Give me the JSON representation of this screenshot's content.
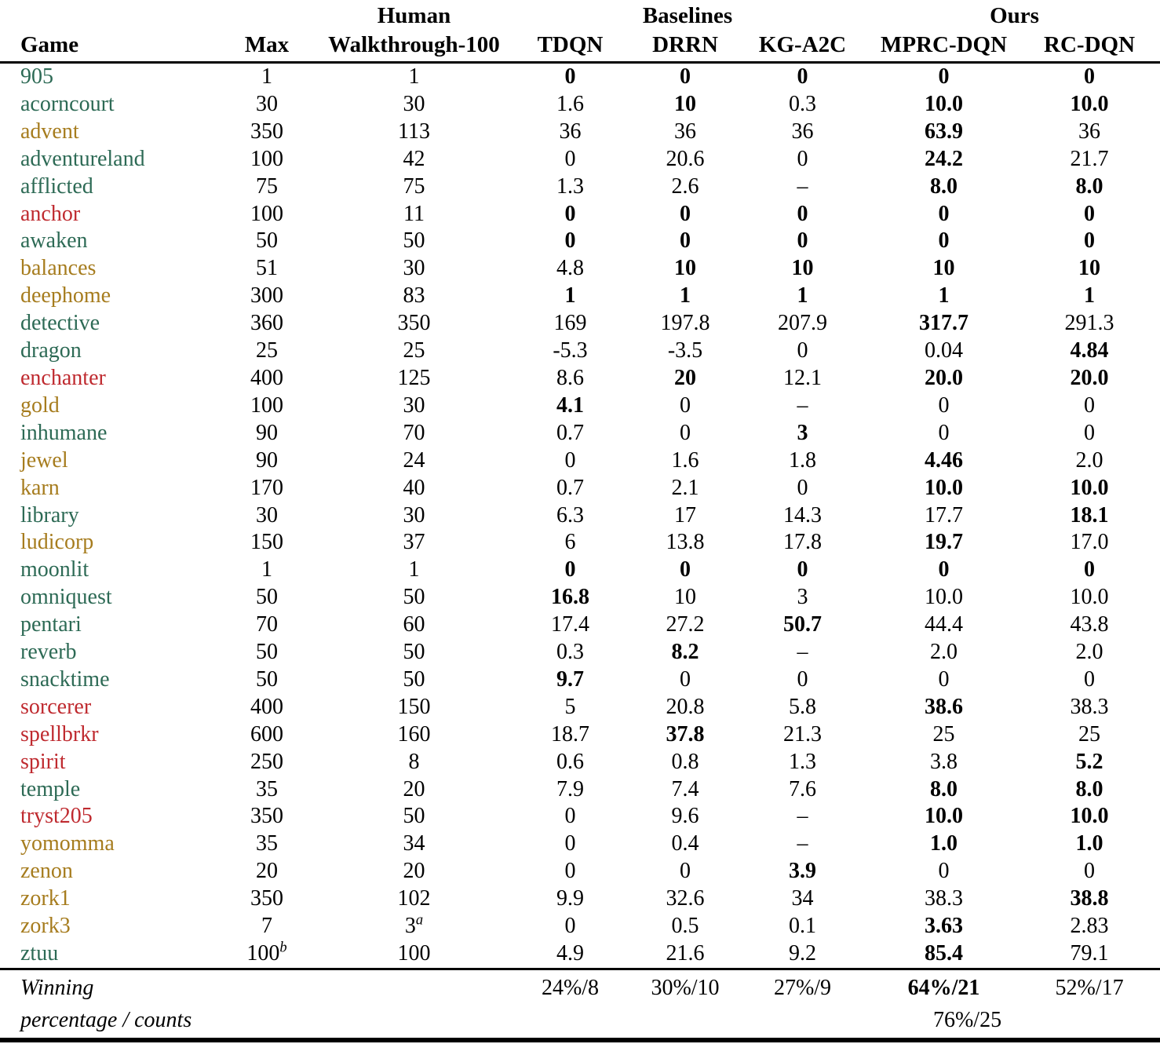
{
  "colors": {
    "green": "#2d6a55",
    "olive": "#a67c1e",
    "red": "#bf2a2f"
  },
  "table": {
    "header": {
      "game": "Game",
      "max": "Max",
      "human_group": "Human",
      "walkthrough": "Walkthrough-100",
      "baselines_group": "Baselines",
      "tdqn": "TDQN",
      "drrn": "DRRN",
      "kg": "KG-A2C",
      "ours_group": "Ours",
      "mprc": "MPRC-DQN",
      "rc": "RC-DQN"
    },
    "rows": [
      {
        "game": "905",
        "color": "green",
        "max": "1",
        "walkthrough": "1",
        "values": [
          "0",
          "0",
          "0",
          "0",
          "0"
        ],
        "bold": [
          true,
          true,
          true,
          true,
          true
        ]
      },
      {
        "game": "acorncourt",
        "color": "green",
        "max": "30",
        "walkthrough": "30",
        "values": [
          "1.6",
          "10",
          "0.3",
          "10.0",
          "10.0"
        ],
        "bold": [
          false,
          true,
          false,
          true,
          true
        ]
      },
      {
        "game": "advent",
        "color": "olive",
        "max": "350",
        "walkthrough": "113",
        "values": [
          "36",
          "36",
          "36",
          "63.9",
          "36"
        ],
        "bold": [
          false,
          false,
          false,
          true,
          false
        ]
      },
      {
        "game": "adventureland",
        "color": "green",
        "max": "100",
        "walkthrough": "42",
        "values": [
          "0",
          "20.6",
          "0",
          "24.2",
          "21.7"
        ],
        "bold": [
          false,
          false,
          false,
          true,
          false
        ]
      },
      {
        "game": "afflicted",
        "color": "green",
        "max": "75",
        "walkthrough": "75",
        "values": [
          "1.3",
          "2.6",
          "–",
          "8.0",
          "8.0"
        ],
        "bold": [
          false,
          false,
          false,
          true,
          true
        ]
      },
      {
        "game": "anchor",
        "color": "red",
        "max": "100",
        "walkthrough": "11",
        "values": [
          "0",
          "0",
          "0",
          "0",
          "0"
        ],
        "bold": [
          true,
          true,
          true,
          true,
          true
        ]
      },
      {
        "game": "awaken",
        "color": "green",
        "max": "50",
        "walkthrough": "50",
        "values": [
          "0",
          "0",
          "0",
          "0",
          "0"
        ],
        "bold": [
          true,
          true,
          true,
          true,
          true
        ]
      },
      {
        "game": "balances",
        "color": "olive",
        "max": "51",
        "walkthrough": "30",
        "values": [
          "4.8",
          "10",
          "10",
          "10",
          "10"
        ],
        "bold": [
          false,
          true,
          true,
          true,
          true
        ]
      },
      {
        "game": "deephome",
        "color": "olive",
        "max": "300",
        "walkthrough": "83",
        "values": [
          "1",
          "1",
          "1",
          "1",
          "1"
        ],
        "bold": [
          true,
          true,
          true,
          true,
          true
        ]
      },
      {
        "game": "detective",
        "color": "green",
        "max": "360",
        "walkthrough": "350",
        "values": [
          "169",
          "197.8",
          "207.9",
          "317.7",
          "291.3"
        ],
        "bold": [
          false,
          false,
          false,
          true,
          false
        ]
      },
      {
        "game": "dragon",
        "color": "green",
        "max": "25",
        "walkthrough": "25",
        "values": [
          "-5.3",
          "-3.5",
          "0",
          "0.04",
          "4.84"
        ],
        "bold": [
          false,
          false,
          false,
          false,
          true
        ]
      },
      {
        "game": "enchanter",
        "color": "red",
        "max": "400",
        "walkthrough": "125",
        "values": [
          "8.6",
          "20",
          "12.1",
          "20.0",
          "20.0"
        ],
        "bold": [
          false,
          true,
          false,
          true,
          true
        ]
      },
      {
        "game": "gold",
        "color": "olive",
        "max": "100",
        "walkthrough": "30",
        "values": [
          "4.1",
          "0",
          "–",
          "0",
          "0"
        ],
        "bold": [
          true,
          false,
          false,
          false,
          false
        ]
      },
      {
        "game": "inhumane",
        "color": "green",
        "max": "90",
        "walkthrough": "70",
        "values": [
          "0.7",
          "0",
          "3",
          "0",
          "0"
        ],
        "bold": [
          false,
          false,
          true,
          false,
          false
        ]
      },
      {
        "game": "jewel",
        "color": "olive",
        "max": "90",
        "walkthrough": "24",
        "values": [
          "0",
          "1.6",
          "1.8",
          "4.46",
          "2.0"
        ],
        "bold": [
          false,
          false,
          false,
          true,
          false
        ]
      },
      {
        "game": "karn",
        "color": "olive",
        "max": "170",
        "walkthrough": "40",
        "values": [
          "0.7",
          "2.1",
          "0",
          "10.0",
          "10.0"
        ],
        "bold": [
          false,
          false,
          false,
          true,
          true
        ]
      },
      {
        "game": "library",
        "color": "green",
        "max": "30",
        "walkthrough": "30",
        "values": [
          "6.3",
          "17",
          "14.3",
          "17.7",
          "18.1"
        ],
        "bold": [
          false,
          false,
          false,
          false,
          true
        ]
      },
      {
        "game": "ludicorp",
        "color": "olive",
        "max": "150",
        "walkthrough": "37",
        "values": [
          "6",
          "13.8",
          "17.8",
          "19.7",
          "17.0"
        ],
        "bold": [
          false,
          false,
          false,
          true,
          false
        ]
      },
      {
        "game": "moonlit",
        "color": "green",
        "max": "1",
        "walkthrough": "1",
        "values": [
          "0",
          "0",
          "0",
          "0",
          "0"
        ],
        "bold": [
          true,
          true,
          true,
          true,
          true
        ]
      },
      {
        "game": "omniquest",
        "color": "green",
        "max": "50",
        "walkthrough": "50",
        "values": [
          "16.8",
          "10",
          "3",
          "10.0",
          "10.0"
        ],
        "bold": [
          true,
          false,
          false,
          false,
          false
        ]
      },
      {
        "game": "pentari",
        "color": "green",
        "max": "70",
        "walkthrough": "60",
        "values": [
          "17.4",
          "27.2",
          "50.7",
          "44.4",
          "43.8"
        ],
        "bold": [
          false,
          false,
          true,
          false,
          false
        ]
      },
      {
        "game": "reverb",
        "color": "green",
        "max": "50",
        "walkthrough": "50",
        "values": [
          "0.3",
          "8.2",
          "–",
          "2.0",
          "2.0"
        ],
        "bold": [
          false,
          true,
          false,
          false,
          false
        ]
      },
      {
        "game": "snacktime",
        "color": "green",
        "max": "50",
        "walkthrough": "50",
        "values": [
          "9.7",
          "0",
          "0",
          "0",
          "0"
        ],
        "bold": [
          true,
          false,
          false,
          false,
          false
        ]
      },
      {
        "game": "sorcerer",
        "color": "red",
        "max": "400",
        "walkthrough": "150",
        "values": [
          "5",
          "20.8",
          "5.8",
          "38.6",
          "38.3"
        ],
        "bold": [
          false,
          false,
          false,
          true,
          false
        ]
      },
      {
        "game": "spellbrkr",
        "color": "red",
        "max": "600",
        "walkthrough": "160",
        "values": [
          "18.7",
          "37.8",
          "21.3",
          "25",
          "25"
        ],
        "bold": [
          false,
          true,
          false,
          false,
          false
        ]
      },
      {
        "game": "spirit",
        "color": "red",
        "max": "250",
        "walkthrough": "8",
        "values": [
          "0.6",
          "0.8",
          "1.3",
          "3.8",
          "5.2"
        ],
        "bold": [
          false,
          false,
          false,
          false,
          true
        ]
      },
      {
        "game": "temple",
        "color": "green",
        "max": "35",
        "walkthrough": "20",
        "values": [
          "7.9",
          "7.4",
          "7.6",
          "8.0",
          "8.0"
        ],
        "bold": [
          false,
          false,
          false,
          true,
          true
        ]
      },
      {
        "game": "tryst205",
        "color": "red",
        "max": "350",
        "walkthrough": "50",
        "values": [
          "0",
          "9.6",
          "–",
          "10.0",
          "10.0"
        ],
        "bold": [
          false,
          false,
          false,
          true,
          true
        ]
      },
      {
        "game": "yomomma",
        "color": "olive",
        "max": "35",
        "walkthrough": "34",
        "values": [
          "0",
          "0.4",
          "–",
          "1.0",
          "1.0"
        ],
        "bold": [
          false,
          false,
          false,
          true,
          true
        ]
      },
      {
        "game": "zenon",
        "color": "olive",
        "max": "20",
        "walkthrough": "20",
        "values": [
          "0",
          "0",
          "3.9",
          "0",
          "0"
        ],
        "bold": [
          false,
          false,
          true,
          false,
          false
        ]
      },
      {
        "game": "zork1",
        "color": "olive",
        "max": "350",
        "walkthrough": "102",
        "values": [
          "9.9",
          "32.6",
          "34",
          "38.3",
          "38.8"
        ],
        "bold": [
          false,
          false,
          false,
          false,
          true
        ]
      },
      {
        "game": "zork3",
        "color": "olive",
        "max": "7",
        "walkthrough": "3",
        "walkthrough_sup": "a",
        "values": [
          "0",
          "0.5",
          "0.1",
          "3.63",
          "2.83"
        ],
        "bold": [
          false,
          false,
          false,
          true,
          false
        ]
      },
      {
        "game": "ztuu",
        "color": "green",
        "max": "100",
        "max_sup": "b",
        "walkthrough": "100",
        "values": [
          "4.9",
          "21.6",
          "9.2",
          "85.4",
          "79.1"
        ],
        "bold": [
          false,
          false,
          false,
          true,
          false
        ]
      }
    ],
    "footer": {
      "label_line1": "Winning",
      "label_line2": "percentage / counts",
      "tdqn": "24%/8",
      "drrn": "30%/10",
      "kg": "27%/9",
      "mprc": "64%/21",
      "rc": "52%/17",
      "ours_combined": "76%/25"
    }
  }
}
